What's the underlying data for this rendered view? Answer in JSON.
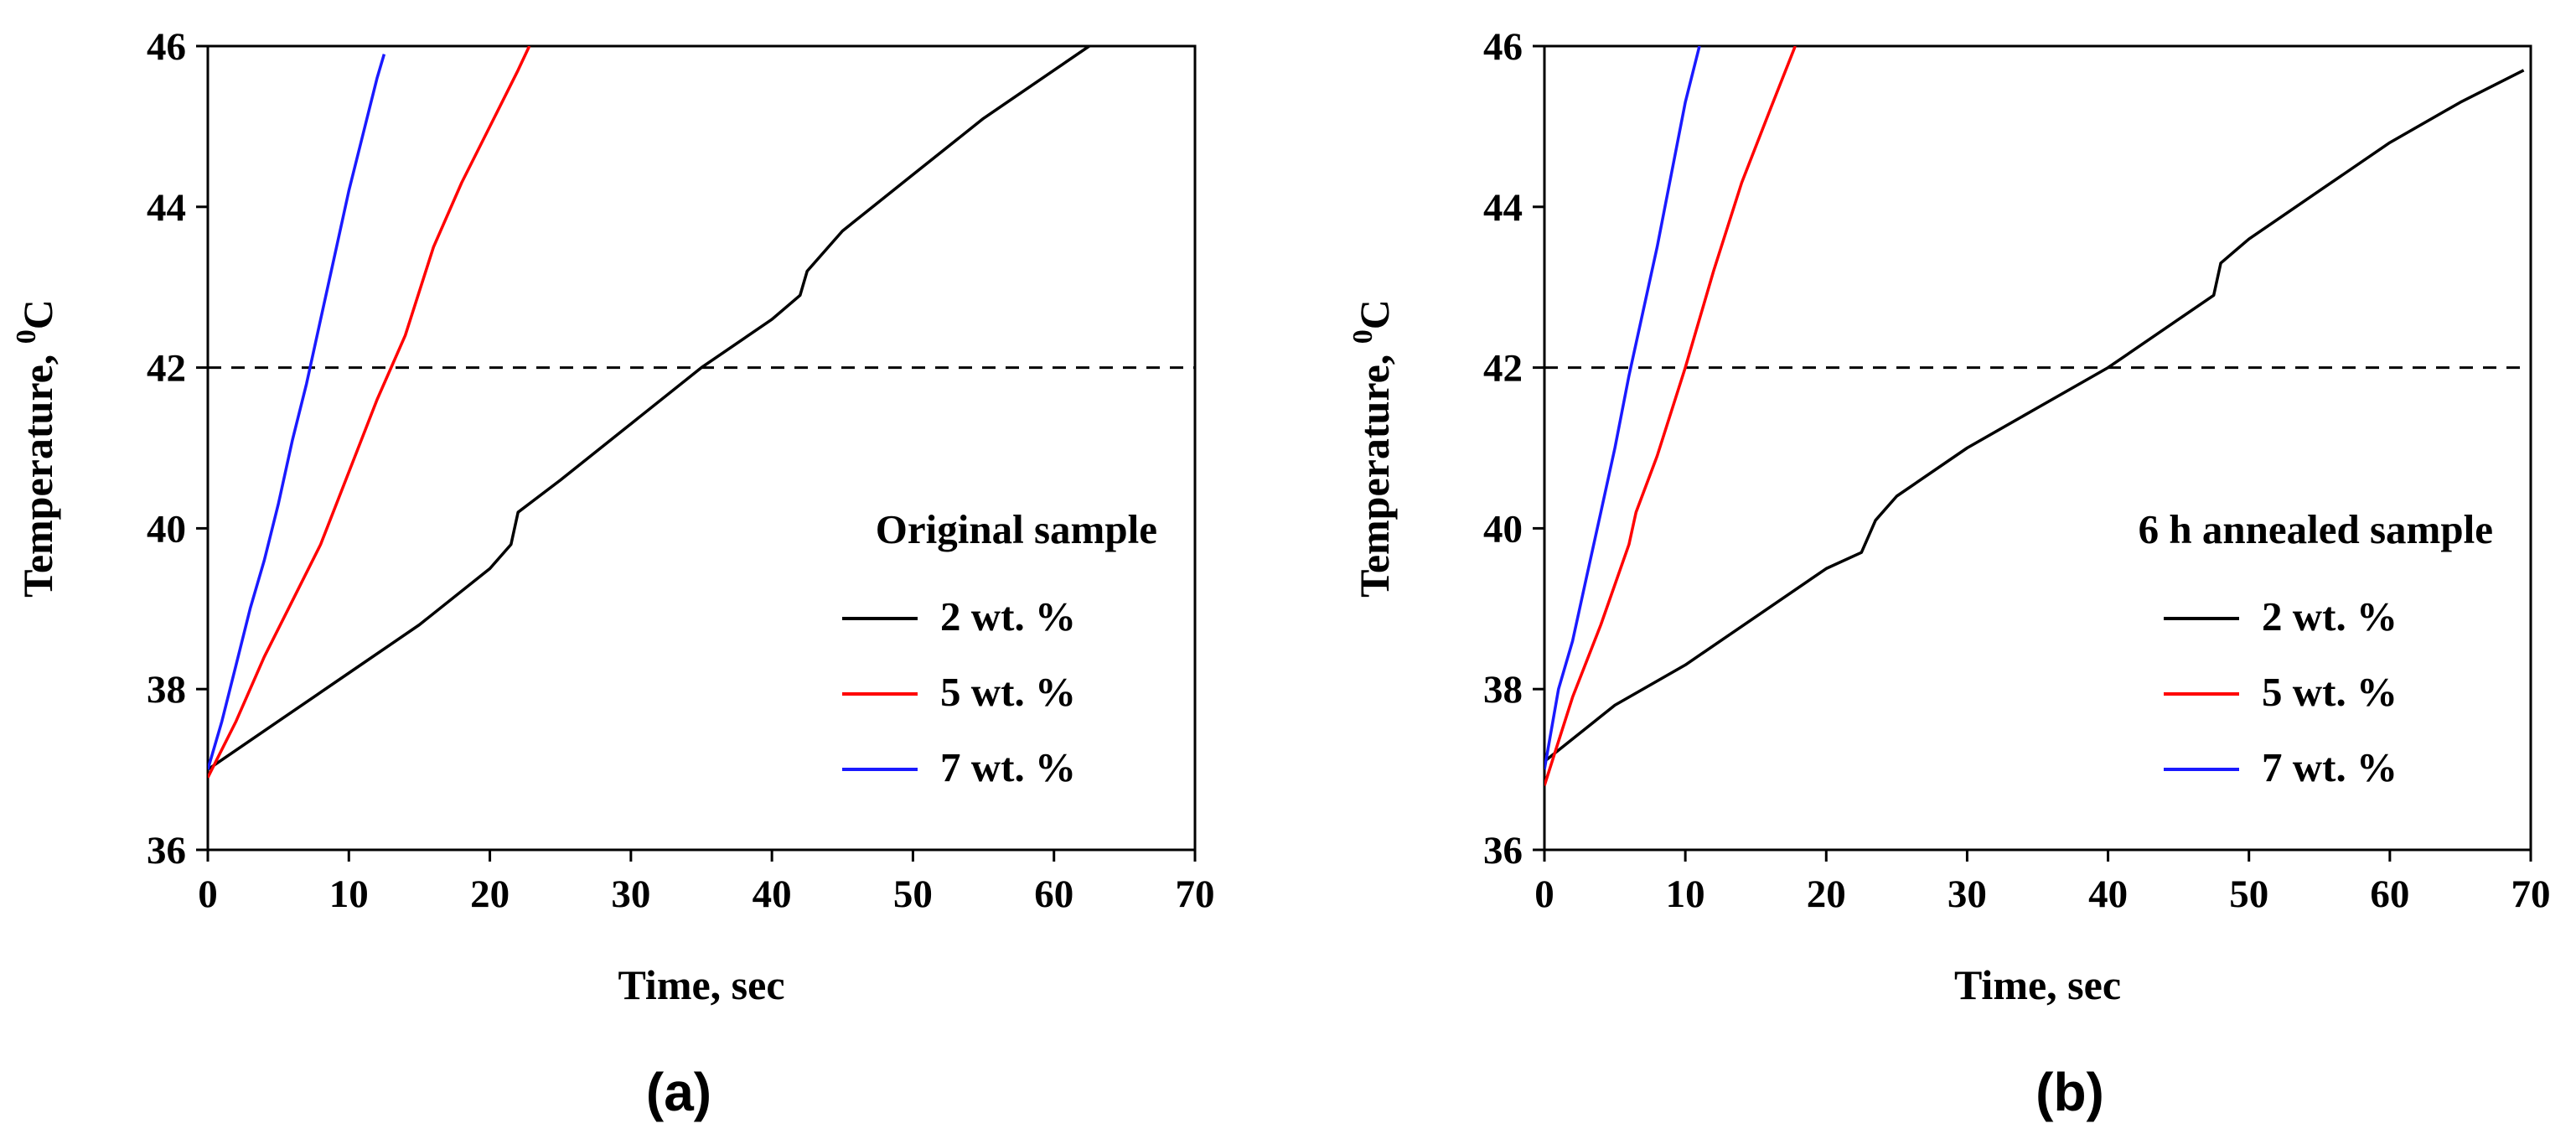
{
  "chart_data": [
    {
      "type": "line",
      "panel_label": "(a)",
      "xlabel": "Time, sec",
      "ylabel": "Temperature, ",
      "ylabel_sup": "0",
      "ylabel_unit": "C",
      "xlim": [
        0,
        70
      ],
      "ylim": [
        36,
        46
      ],
      "xticks": [
        "0",
        "10",
        "20",
        "30",
        "40",
        "50",
        "60",
        "70"
      ],
      "yticks": [
        "36",
        "38",
        "40",
        "42",
        "44",
        "46"
      ],
      "reference_line": {
        "y": 42,
        "style": "dashed"
      },
      "legend": {
        "title": "Original sample",
        "placement": "right",
        "entries": [
          "2 wt. %",
          "5 wt. %",
          "7 wt. %"
        ]
      },
      "series": [
        {
          "name": "2 wt. %",
          "color": "#000000",
          "x": [
            0,
            5,
            10,
            15,
            20,
            21.5,
            22,
            25,
            30,
            35,
            40,
            42,
            42.5,
            45,
            50,
            55,
            60,
            62.5
          ],
          "y": [
            37.0,
            37.6,
            38.2,
            38.8,
            39.5,
            39.8,
            40.2,
            40.6,
            41.3,
            42.0,
            42.6,
            42.9,
            43.2,
            43.7,
            44.4,
            45.1,
            45.7,
            46.0
          ]
        },
        {
          "name": "5 wt. %",
          "color": "#ff0000",
          "x": [
            0,
            2,
            4,
            6,
            8,
            10,
            12,
            14,
            16,
            18,
            20,
            22,
            22.8
          ],
          "y": [
            36.9,
            37.6,
            38.4,
            39.1,
            39.8,
            40.7,
            41.6,
            42.4,
            43.5,
            44.3,
            45.0,
            45.7,
            46.0
          ]
        },
        {
          "name": "7 wt. %",
          "color": "#1a1aff",
          "x": [
            0,
            1,
            2,
            3,
            4,
            5,
            6,
            7,
            8,
            9,
            10,
            11,
            12,
            12.5
          ],
          "y": [
            37.0,
            37.6,
            38.3,
            39.0,
            39.6,
            40.3,
            41.1,
            41.8,
            42.6,
            43.4,
            44.2,
            44.9,
            45.6,
            45.9
          ]
        }
      ]
    },
    {
      "type": "line",
      "panel_label": "(b)",
      "xlabel": "Time, sec",
      "ylabel": "Temperature, ",
      "ylabel_sup": "0",
      "ylabel_unit": "C",
      "xlim": [
        0,
        70
      ],
      "ylim": [
        36,
        46
      ],
      "xticks": [
        "0",
        "10",
        "20",
        "30",
        "40",
        "50",
        "60",
        "70"
      ],
      "yticks": [
        "36",
        "38",
        "40",
        "42",
        "44",
        "46"
      ],
      "reference_line": {
        "y": 42,
        "style": "dashed"
      },
      "legend": {
        "title": "6 h annealed sample",
        "placement": "right",
        "entries": [
          "2 wt. %",
          "5 wt. %",
          "7 wt. %"
        ]
      },
      "series": [
        {
          "name": "2 wt. %",
          "color": "#000000",
          "x": [
            0,
            5,
            10,
            15,
            20,
            22.5,
            23.5,
            25,
            30,
            35,
            40,
            45,
            47.5,
            48,
            50,
            55,
            60,
            65,
            69.5
          ],
          "y": [
            37.1,
            37.8,
            38.3,
            38.9,
            39.5,
            39.7,
            40.1,
            40.4,
            41.0,
            41.5,
            42.0,
            42.6,
            42.9,
            43.3,
            43.6,
            44.2,
            44.8,
            45.3,
            45.7
          ]
        },
        {
          "name": "5 wt. %",
          "color": "#ff0000",
          "x": [
            0,
            2,
            4,
            6,
            6.5,
            8,
            10,
            12,
            14,
            16,
            17.8
          ],
          "y": [
            36.8,
            37.9,
            38.8,
            39.8,
            40.2,
            40.9,
            42.0,
            43.2,
            44.3,
            45.2,
            46.0
          ]
        },
        {
          "name": "7 wt. %",
          "color": "#1a1aff",
          "x": [
            0,
            1,
            2,
            3,
            4,
            5,
            6,
            7,
            8,
            9,
            10,
            11
          ],
          "y": [
            37.0,
            38.0,
            38.6,
            39.4,
            40.2,
            41.0,
            41.9,
            42.7,
            43.5,
            44.4,
            45.3,
            46.0
          ]
        }
      ]
    }
  ]
}
